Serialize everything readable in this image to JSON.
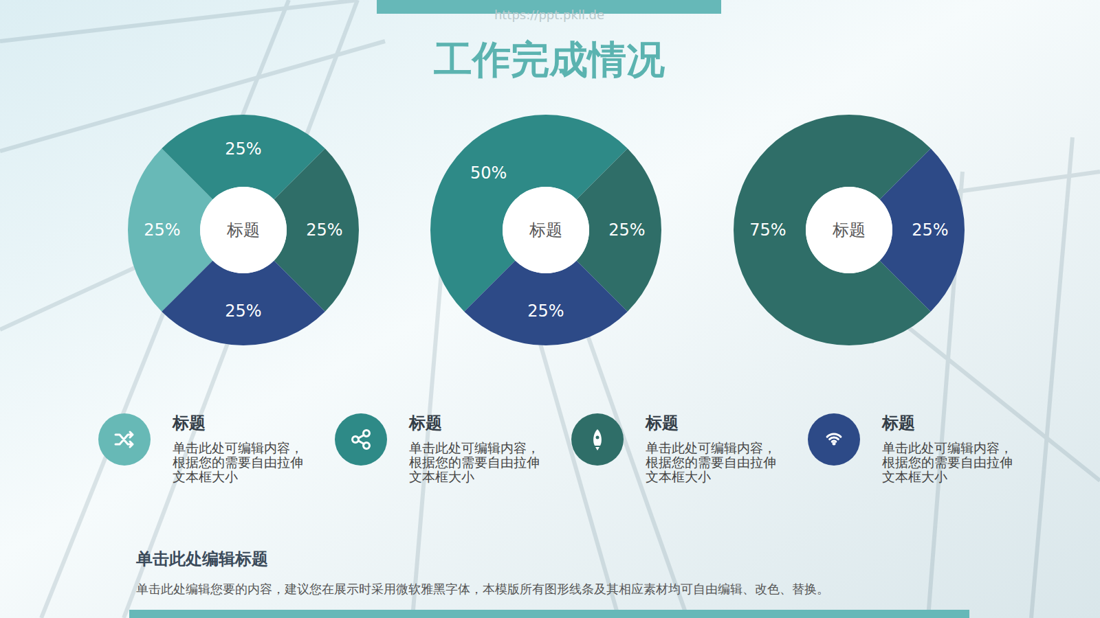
{
  "title": "工作完成情况",
  "watermark": "https://ppt.pkll.de",
  "chart_data": [
    {
      "type": "pie",
      "center_label": "标题",
      "values": [
        25,
        25,
        25,
        25
      ],
      "value_labels": [
        "25%",
        "25%",
        "25%",
        "25%"
      ],
      "colors": [
        "#68b9b7",
        "#2e8a87",
        "#2f6e68",
        "#2d4a87"
      ],
      "data_labels": true
    },
    {
      "type": "pie",
      "center_label": "标题",
      "values": [
        50,
        25,
        25
      ],
      "value_labels": [
        "50%",
        "25%",
        "25%"
      ],
      "colors": [
        "#2e8a87",
        "#2f6e68",
        "#2d4a87"
      ],
      "data_labels": true
    },
    {
      "type": "pie",
      "center_label": "标题",
      "values": [
        75,
        25
      ],
      "value_labels": [
        "75%",
        "25%"
      ],
      "colors": [
        "#2f6e68",
        "#2d4a87"
      ],
      "data_labels": true
    }
  ],
  "items": [
    {
      "title": "标题",
      "text": "单击此处可编辑内容，根据您的需要自由拉伸文本框大小"
    },
    {
      "title": "标题",
      "text": "单击此处可编辑内容，根据您的需要自由拉伸文本框大小"
    },
    {
      "title": "标题",
      "text": "单击此处可编辑内容，根据您的需要自由拉伸文本框大小"
    },
    {
      "title": "标题",
      "text": "单击此处可编辑内容，根据您的需要自由拉伸文本框大小"
    }
  ],
  "footer": {
    "title": "单击此处编辑标题",
    "text": "单击此处编辑您要的内容，建议您在展示时采用微软雅黑字体，本模版所有图形线条及其相应素材均可自由编辑、改色、替换。"
  }
}
